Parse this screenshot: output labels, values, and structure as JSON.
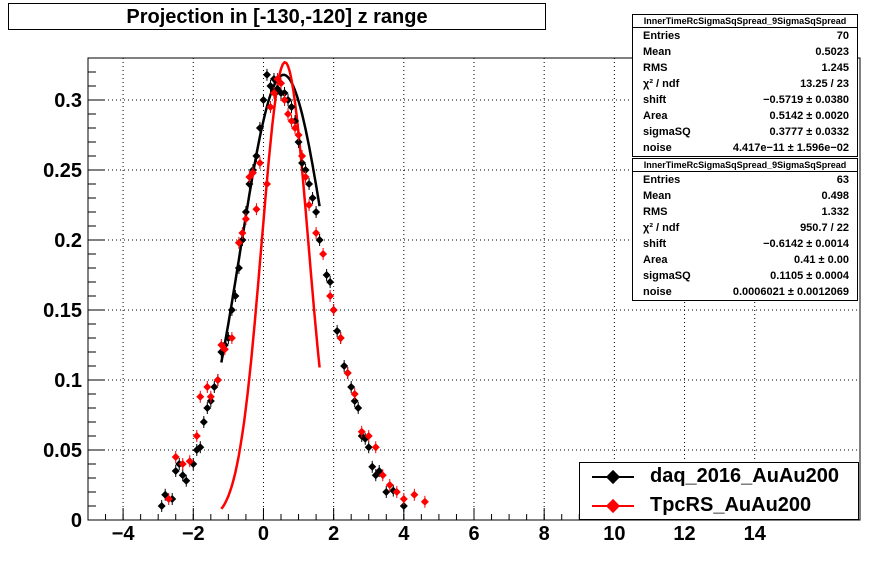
{
  "chart_data": {
    "type": "scatter",
    "title": "Projection in [-130,-120] z range",
    "xlim": [
      -5,
      17
    ],
    "ylim": [
      0,
      0.33
    ],
    "x_ticks": [
      -4,
      -2,
      0,
      2,
      4,
      6,
      8,
      10,
      12,
      14
    ],
    "x_tick_labels": [
      "−4",
      "−2",
      "0",
      "2",
      "4",
      "6",
      "8",
      "10",
      "12",
      "14"
    ],
    "y_ticks": [
      0,
      0.05,
      0.1,
      0.15,
      0.2,
      0.25,
      0.3
    ],
    "y_tick_labels": [
      "0",
      "0.05",
      "0.1",
      "0.15",
      "0.2",
      "0.25",
      "0.3"
    ],
    "grid": true,
    "legend_position": "bottom-right",
    "series": [
      {
        "name": "daq_2016_AuAu200",
        "color": "#000000",
        "points": [
          [
            -2.9,
            0.01
          ],
          [
            -2.8,
            0.018
          ],
          [
            -2.6,
            0.015
          ],
          [
            -2.5,
            0.035
          ],
          [
            -2.4,
            0.04
          ],
          [
            -2.3,
            0.032
          ],
          [
            -2.2,
            0.028
          ],
          [
            -2.0,
            0.04
          ],
          [
            -1.9,
            0.05
          ],
          [
            -1.8,
            0.052
          ],
          [
            -1.7,
            0.07
          ],
          [
            -1.6,
            0.08
          ],
          [
            -1.5,
            0.085
          ],
          [
            -1.4,
            0.095
          ],
          [
            -1.3,
            0.1
          ],
          [
            -1.2,
            0.12
          ],
          [
            -1.1,
            0.125
          ],
          [
            -1.0,
            0.13
          ],
          [
            -0.9,
            0.15
          ],
          [
            -0.8,
            0.16
          ],
          [
            -0.7,
            0.18
          ],
          [
            -0.6,
            0.2
          ],
          [
            -0.5,
            0.22
          ],
          [
            -0.4,
            0.24
          ],
          [
            -0.3,
            0.25
          ],
          [
            -0.2,
            0.26
          ],
          [
            -0.1,
            0.28
          ],
          [
            0.0,
            0.3
          ],
          [
            0.1,
            0.318
          ],
          [
            0.2,
            0.31
          ],
          [
            0.3,
            0.315
          ],
          [
            0.4,
            0.308
          ],
          [
            0.5,
            0.305
          ],
          [
            0.6,
            0.305
          ],
          [
            0.7,
            0.3
          ],
          [
            0.8,
            0.295
          ],
          [
            0.9,
            0.285
          ],
          [
            1.0,
            0.27
          ],
          [
            1.1,
            0.255
          ],
          [
            1.2,
            0.25
          ],
          [
            1.3,
            0.24
          ],
          [
            1.4,
            0.23
          ],
          [
            1.5,
            0.22
          ],
          [
            1.6,
            0.2
          ],
          [
            1.8,
            0.175
          ],
          [
            1.9,
            0.17
          ],
          [
            2.0,
            0.15
          ],
          [
            2.1,
            0.135
          ],
          [
            2.2,
            0.13
          ],
          [
            2.3,
            0.11
          ],
          [
            2.4,
            0.105
          ],
          [
            2.5,
            0.095
          ],
          [
            2.6,
            0.085
          ],
          [
            2.7,
            0.08
          ],
          [
            2.8,
            0.06
          ],
          [
            2.9,
            0.058
          ],
          [
            3.0,
            0.052
          ],
          [
            3.1,
            0.038
          ],
          [
            3.2,
            0.032
          ],
          [
            3.3,
            0.035
          ],
          [
            3.5,
            0.02
          ],
          [
            3.7,
            0.021
          ],
          [
            4.0,
            0.01
          ]
        ],
        "fit": {
          "shift": -0.5719,
          "area": 0.5142,
          "sigmaSQ": 0.3777,
          "range": [
            -1.2,
            1.6
          ]
        }
      },
      {
        "name": "TpcRS_AuAu200",
        "color": "#ff0000",
        "points": [
          [
            -2.7,
            0.015
          ],
          [
            -2.5,
            0.045
          ],
          [
            -2.3,
            0.04
          ],
          [
            -2.1,
            0.042
          ],
          [
            -1.9,
            0.06
          ],
          [
            -1.8,
            0.088
          ],
          [
            -1.6,
            0.095
          ],
          [
            -1.5,
            0.088
          ],
          [
            -1.3,
            0.1
          ],
          [
            -1.2,
            0.125
          ],
          [
            -1.1,
            0.122
          ],
          [
            -0.9,
            0.13
          ],
          [
            -0.7,
            0.198
          ],
          [
            -0.6,
            0.205
          ],
          [
            -0.5,
            0.215
          ],
          [
            -0.4,
            0.245
          ],
          [
            -0.3,
            0.248
          ],
          [
            -0.2,
            0.222
          ],
          [
            -0.1,
            0.255
          ],
          [
            0.1,
            0.24
          ],
          [
            0.2,
            0.295
          ],
          [
            0.3,
            0.305
          ],
          [
            0.4,
            0.315
          ],
          [
            0.5,
            0.312
          ],
          [
            0.6,
            0.3
          ],
          [
            0.7,
            0.29
          ],
          [
            0.8,
            0.285
          ],
          [
            0.9,
            0.28
          ],
          [
            1.0,
            0.275
          ],
          [
            1.1,
            0.26
          ],
          [
            1.2,
            0.245
          ],
          [
            1.3,
            0.225
          ],
          [
            1.5,
            0.205
          ],
          [
            1.7,
            0.19
          ],
          [
            1.9,
            0.16
          ],
          [
            2.0,
            0.15
          ],
          [
            2.2,
            0.13
          ],
          [
            2.4,
            0.105
          ],
          [
            2.6,
            0.09
          ],
          [
            2.8,
            0.063
          ],
          [
            3.0,
            0.06
          ],
          [
            3.2,
            0.052
          ],
          [
            3.4,
            0.032
          ],
          [
            3.6,
            0.025
          ],
          [
            3.8,
            0.02
          ],
          [
            4.0,
            0.015
          ],
          [
            4.3,
            0.018
          ],
          [
            4.6,
            0.013
          ]
        ],
        "fit": {
          "shift": -0.6142,
          "area": 0.41,
          "sigmaSQ": 0.1105,
          "range": [
            -1.2,
            1.6
          ]
        }
      }
    ]
  },
  "stats": [
    {
      "title": "InnerTimeRcSigmaSqSpread_9SigmaSqSpread",
      "rows": [
        [
          "Entries",
          "70"
        ],
        [
          "Mean",
          "0.5023"
        ],
        [
          "RMS",
          "1.245"
        ],
        [
          "χ² / ndf",
          "13.25 / 23"
        ],
        [
          "shift",
          "−0.5719 ± 0.0380"
        ],
        [
          "Area",
          "0.5142 ± 0.0020"
        ],
        [
          "sigmaSQ",
          "0.3777 ± 0.0332"
        ],
        [
          "noise",
          "4.417e−11 ± 1.596e−02"
        ]
      ]
    },
    {
      "title": "InnerTimeRcSigmaSqSpread_9SigmaSqSpread",
      "rows": [
        [
          "Entries",
          "63"
        ],
        [
          "Mean",
          "0.498"
        ],
        [
          "RMS",
          "1.332"
        ],
        [
          "χ² / ndf",
          "950.7 / 22"
        ],
        [
          "shift",
          "−0.6142 ± 0.0014"
        ],
        [
          "Area",
          "0.41 ± 0.00"
        ],
        [
          "sigmaSQ",
          "0.1105 ± 0.0004"
        ],
        [
          "noise",
          "0.0006021 ± 0.0012069"
        ]
      ]
    }
  ],
  "legend": [
    {
      "label": "daq_2016_AuAu200",
      "color": "#000000"
    },
    {
      "label": "TpcRS_AuAu200",
      "color": "#ff0000"
    }
  ]
}
